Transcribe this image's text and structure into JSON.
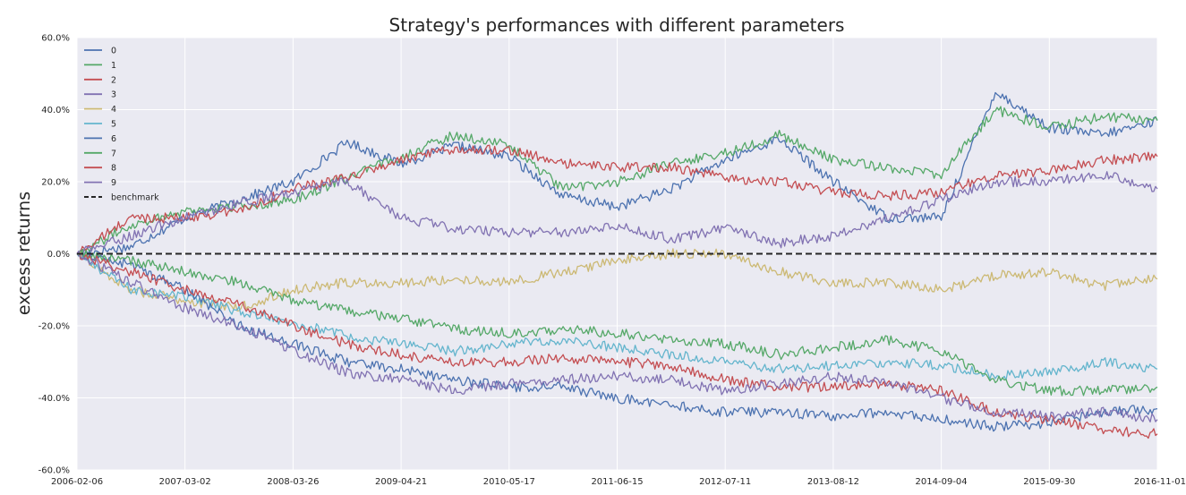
{
  "chart_data": {
    "type": "line",
    "title": "Strategy's performances with different parameters",
    "xlabel": "",
    "ylabel": "excess returns",
    "ylim": [
      -0.6,
      0.6
    ],
    "yticks": [
      0.6,
      0.4,
      0.2,
      0.0,
      -0.2,
      -0.4,
      -0.6
    ],
    "ytick_labels": [
      "60.0%",
      "40.0%",
      "20.0%",
      "0.0%",
      "-20.0%",
      "-40.0%",
      "-60.0%"
    ],
    "x_tick_labels": [
      "2006-02-06",
      "2007-03-02",
      "2008-03-26",
      "2009-04-21",
      "2010-05-17",
      "2011-06-15",
      "2012-07-11",
      "2013-08-12",
      "2014-09-04",
      "2015-09-30",
      "2016-11-01"
    ],
    "x_ticks": [
      0,
      1,
      2,
      3,
      4,
      5,
      6,
      7,
      8,
      9,
      10
    ],
    "xlim": [
      0,
      10
    ],
    "grid": true,
    "legend_position": "top-left",
    "x": [
      0,
      0.5,
      1,
      1.5,
      2,
      2.5,
      3,
      3.5,
      4,
      4.5,
      5,
      5.5,
      6,
      6.5,
      7,
      7.5,
      8,
      8.5,
      9,
      9.5,
      10
    ],
    "series": [
      {
        "name": "0",
        "color": "#4c72b0",
        "dash": false,
        "values": [
          0.0,
          0.02,
          0.1,
          0.15,
          0.2,
          0.31,
          0.25,
          0.3,
          0.27,
          0.16,
          0.13,
          0.18,
          0.26,
          0.32,
          0.2,
          0.1,
          0.1,
          0.45,
          0.35,
          0.33,
          0.37
        ]
      },
      {
        "name": "1",
        "color": "#55a868",
        "dash": false,
        "values": [
          0.0,
          0.08,
          0.12,
          0.13,
          0.15,
          0.21,
          0.27,
          0.33,
          0.3,
          0.18,
          0.2,
          0.25,
          0.28,
          0.33,
          0.26,
          0.24,
          0.22,
          0.4,
          0.35,
          0.38,
          0.37
        ]
      },
      {
        "name": "2",
        "color": "#c44e52",
        "dash": false,
        "values": [
          0.0,
          0.1,
          0.1,
          0.12,
          0.18,
          0.21,
          0.26,
          0.29,
          0.29,
          0.25,
          0.24,
          0.24,
          0.21,
          0.2,
          0.17,
          0.16,
          0.17,
          0.22,
          0.23,
          0.26,
          0.27
        ]
      },
      {
        "name": "3",
        "color": "#8172b2",
        "dash": false,
        "values": [
          0.0,
          0.05,
          0.1,
          0.14,
          0.17,
          0.2,
          0.1,
          0.07,
          0.06,
          0.06,
          0.08,
          0.04,
          0.07,
          0.03,
          0.05,
          0.1,
          0.15,
          0.2,
          0.2,
          0.22,
          0.18
        ]
      },
      {
        "name": "4",
        "color": "#ccb974",
        "dash": false,
        "values": [
          0.0,
          -0.1,
          -0.13,
          -0.15,
          -0.1,
          -0.08,
          -0.08,
          -0.07,
          -0.08,
          -0.05,
          -0.02,
          0.0,
          0.0,
          -0.05,
          -0.08,
          -0.08,
          -0.1,
          -0.06,
          -0.05,
          -0.09,
          -0.07
        ]
      },
      {
        "name": "5",
        "color": "#64b5cd",
        "dash": false,
        "values": [
          0.0,
          -0.1,
          -0.12,
          -0.16,
          -0.19,
          -0.23,
          -0.25,
          -0.27,
          -0.25,
          -0.24,
          -0.26,
          -0.28,
          -0.3,
          -0.32,
          -0.31,
          -0.3,
          -0.31,
          -0.34,
          -0.33,
          -0.3,
          -0.32
        ]
      },
      {
        "name": "6",
        "color": "#4c72b0",
        "dash": false,
        "values": [
          0.0,
          -0.03,
          -0.1,
          -0.2,
          -0.25,
          -0.3,
          -0.32,
          -0.35,
          -0.37,
          -0.37,
          -0.4,
          -0.42,
          -0.44,
          -0.44,
          -0.45,
          -0.44,
          -0.46,
          -0.48,
          -0.47,
          -0.44,
          -0.43
        ]
      },
      {
        "name": "7",
        "color": "#55a868",
        "dash": false,
        "values": [
          0.0,
          -0.02,
          -0.05,
          -0.08,
          -0.13,
          -0.16,
          -0.18,
          -0.21,
          -0.22,
          -0.21,
          -0.22,
          -0.24,
          -0.25,
          -0.28,
          -0.26,
          -0.24,
          -0.27,
          -0.35,
          -0.38,
          -0.38,
          -0.37
        ]
      },
      {
        "name": "8",
        "color": "#c44e52",
        "dash": false,
        "values": [
          0.0,
          -0.05,
          -0.1,
          -0.14,
          -0.2,
          -0.25,
          -0.28,
          -0.3,
          -0.3,
          -0.29,
          -0.3,
          -0.31,
          -0.35,
          -0.37,
          -0.37,
          -0.36,
          -0.38,
          -0.44,
          -0.46,
          -0.49,
          -0.5
        ]
      },
      {
        "name": "9",
        "color": "#8172b2",
        "dash": false,
        "values": [
          0.0,
          -0.08,
          -0.15,
          -0.2,
          -0.27,
          -0.33,
          -0.35,
          -0.38,
          -0.36,
          -0.35,
          -0.34,
          -0.35,
          -0.38,
          -0.36,
          -0.34,
          -0.36,
          -0.4,
          -0.44,
          -0.45,
          -0.44,
          -0.46
        ]
      },
      {
        "name": "benchmark",
        "color": "#262626",
        "dash": true,
        "values": [
          0.0,
          0.0,
          0.0,
          0.0,
          0.0,
          0.0,
          0.0,
          0.0,
          0.0,
          0.0,
          0.0,
          0.0,
          0.0,
          0.0,
          0.0,
          0.0,
          0.0,
          0.0,
          0.0,
          0.0,
          0.0
        ]
      }
    ]
  },
  "colors": {
    "plot_background": "#eaeaf2",
    "grid": "#ffffff",
    "text": "#262626"
  }
}
